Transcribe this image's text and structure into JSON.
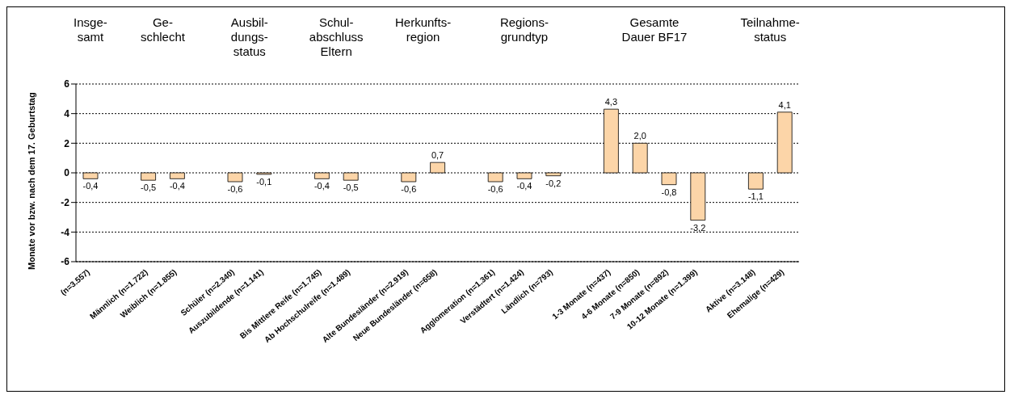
{
  "chart_data": {
    "type": "bar",
    "ylabel": "Monate vor bzw. nach dem 17. Geburtstag",
    "categories": [
      "(n=3.557)",
      null,
      "Männlich (n=1.722)",
      "Weiblich (n=1.855)",
      null,
      "Schüler (n=2.340)",
      "Auszubildende (n=1.141)",
      null,
      "Bis Mittlere Reife (n=1.745)",
      "Ab Hochschulreife (n=1.489)",
      null,
      "Alte Bundesländer (n=2.919)",
      "Neue Bundesländer (n=658)",
      null,
      "Agglomeration (n=1.361)",
      "Verstädtert (n=1.424)",
      "Ländlich (n=793)",
      null,
      "1-3 Monate (n=437)",
      "4-6 Monate (n=850)",
      "7-9 Monate (n=892)",
      "10-12 Monate (n=1.399)",
      null,
      "Aktive (n=3.148)",
      "Ehemalige (n=429)"
    ],
    "values": [
      -0.4,
      null,
      -0.5,
      -0.4,
      null,
      -0.6,
      -0.1,
      null,
      -0.4,
      -0.5,
      null,
      -0.6,
      0.7,
      null,
      -0.6,
      -0.4,
      -0.2,
      null,
      4.3,
      2.0,
      -0.8,
      -3.2,
      null,
      -1.1,
      4.1
    ],
    "value_labels": [
      "-0,4",
      null,
      "-0,5",
      "-0,4",
      null,
      "-0,6",
      "-0,1",
      null,
      "-0,4",
      "-0,5",
      null,
      "-0,6",
      "0,7",
      null,
      "-0,6",
      "-0,4",
      "-0,2",
      null,
      "4,3",
      "2,0",
      "-0,8",
      "-3,2",
      null,
      "-1,1",
      "4,1"
    ],
    "color": "#fcd5a8",
    "ylim": [
      -6,
      6
    ],
    "yticks": [
      -6,
      -4,
      -2,
      0,
      2,
      4,
      6
    ],
    "grid": "y",
    "legend": false,
    "annotations": [
      "Insge-\nsamt",
      "Ge-\nschlecht",
      "Ausbil-\ndungs-\nstatus",
      "Schul-\nabschluss\nEltern",
      "Herkunfts-\nregion",
      "Regions-\ngrundtyp",
      "Gesamte\nDauer BF17",
      "Teilnahme-\nstatus"
    ]
  }
}
